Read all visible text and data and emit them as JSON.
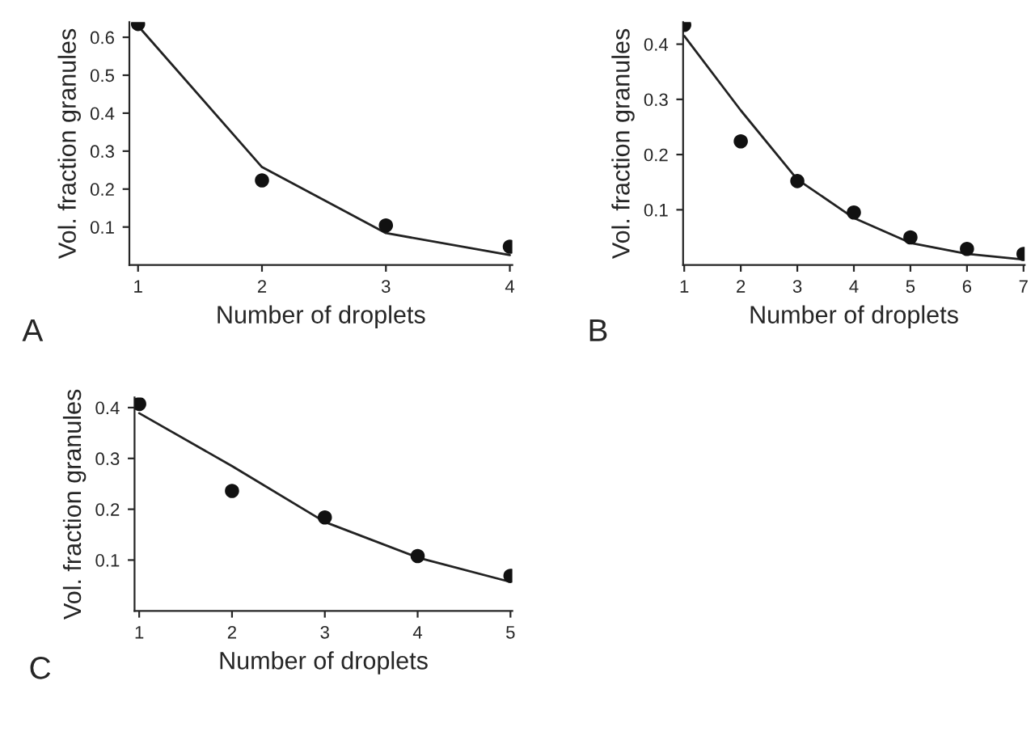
{
  "chart_data": [
    {
      "type": "scatter",
      "xlabel": "Number of droplets",
      "ylabel": "Vol. fraction granules",
      "annotations": [
        "A"
      ],
      "x": [
        1,
        2,
        3,
        4
      ],
      "xlim": [
        0.93,
        4.02
      ],
      "xticks": [
        1,
        2,
        3,
        4
      ],
      "ylim": [
        0,
        0.64
      ],
      "yticks": [
        0.1,
        0.2,
        0.3,
        0.4,
        0.5,
        0.6
      ],
      "grid": false,
      "legend": false,
      "series": [
        {
          "color": "#111111",
          "marker": "circle",
          "values": [
            0.635,
            0.223,
            0.104,
            0.048
          ]
        },
        {
          "type": "line",
          "color": "#222222",
          "values": [
            0.63,
            0.258,
            0.084,
            0.026
          ]
        }
      ]
    },
    {
      "type": "scatter",
      "xlabel": "Number of droplets",
      "ylabel": "Vol. fraction granules",
      "annotations": [
        "B"
      ],
      "x": [
        1,
        2,
        3,
        4,
        5,
        6,
        7
      ],
      "xlim": [
        0.98,
        7.02
      ],
      "xticks": [
        1,
        2,
        3,
        4,
        5,
        6,
        7
      ],
      "ylim": [
        0,
        0.44
      ],
      "yticks": [
        0.1,
        0.2,
        0.3,
        0.4
      ],
      "grid": false,
      "legend": false,
      "series": [
        {
          "color": "#111111",
          "marker": "circle",
          "values": [
            0.435,
            0.224,
            0.152,
            0.095,
            0.05,
            0.029,
            0.02
          ]
        },
        {
          "type": "line",
          "color": "#222222",
          "values": [
            0.415,
            0.28,
            0.155,
            0.085,
            0.04,
            0.02,
            0.01
          ]
        }
      ]
    },
    {
      "type": "scatter",
      "xlabel": "Number of droplets",
      "ylabel": "Vol. fraction granules",
      "annotations": [
        "C"
      ],
      "x": [
        1,
        2,
        3,
        4,
        5
      ],
      "xlim": [
        0.95,
        5.02
      ],
      "xticks": [
        1,
        2,
        3,
        4,
        5
      ],
      "ylim": [
        0,
        0.42
      ],
      "yticks": [
        0.1,
        0.2,
        0.3,
        0.4
      ],
      "grid": false,
      "legend": false,
      "series": [
        {
          "color": "#111111",
          "marker": "circle",
          "values": [
            0.407,
            0.236,
            0.184,
            0.108,
            0.069
          ]
        },
        {
          "type": "line",
          "color": "#222222",
          "values": [
            0.389,
            0.285,
            0.175,
            0.105,
            0.057
          ]
        }
      ]
    }
  ]
}
